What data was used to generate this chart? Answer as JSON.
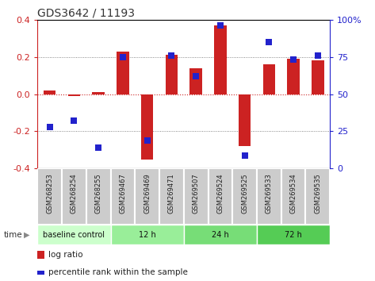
{
  "title": "GDS3642 / 11193",
  "samples": [
    "GSM268253",
    "GSM268254",
    "GSM268255",
    "GSM269467",
    "GSM269469",
    "GSM269471",
    "GSM269507",
    "GSM269524",
    "GSM269525",
    "GSM269533",
    "GSM269534",
    "GSM269535"
  ],
  "log_ratio": [
    0.02,
    -0.01,
    0.01,
    0.23,
    -0.35,
    0.21,
    0.14,
    0.37,
    -0.28,
    0.16,
    0.19,
    0.18
  ],
  "percentile_pct": [
    28,
    32,
    14,
    75,
    19,
    76,
    62,
    96,
    9,
    85,
    73,
    76
  ],
  "ylim_left": [
    -0.4,
    0.4
  ],
  "ylim_right": [
    0,
    100
  ],
  "bar_color": "#cc2222",
  "dot_color": "#2222cc",
  "bg_color": "#ffffff",
  "groups": [
    {
      "label": "baseline control",
      "start": 0,
      "end": 3,
      "color": "#ccffcc"
    },
    {
      "label": "12 h",
      "start": 3,
      "end": 6,
      "color": "#99ee99"
    },
    {
      "label": "24 h",
      "start": 6,
      "end": 9,
      "color": "#77dd77"
    },
    {
      "label": "72 h",
      "start": 9,
      "end": 12,
      "color": "#55cc55"
    }
  ],
  "yticks_left": [
    -0.4,
    -0.2,
    0.0,
    0.2,
    0.4
  ],
  "yticks_right": [
    0,
    25,
    50,
    75,
    100
  ],
  "dot_size": 40,
  "bar_width": 0.5,
  "cell_color": "#cccccc",
  "cell_border": "#ffffff"
}
